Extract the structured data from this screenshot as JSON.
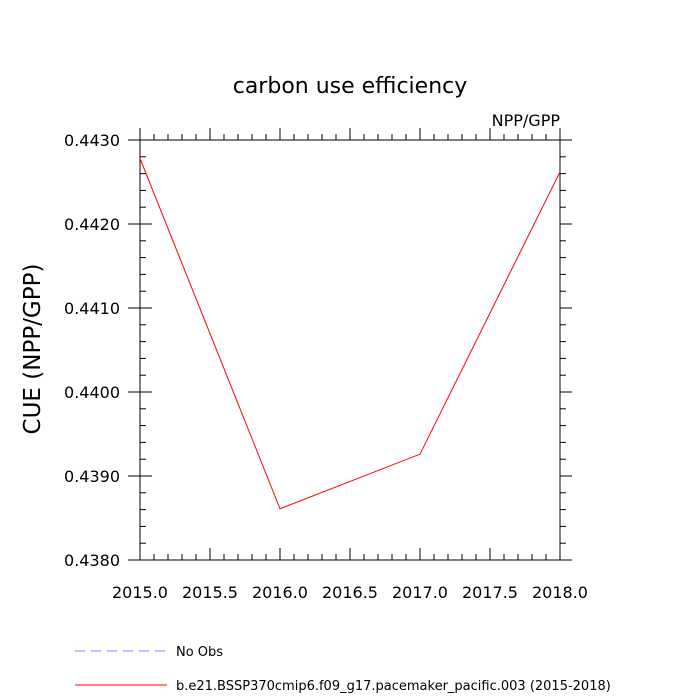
{
  "chart_data": {
    "type": "line",
    "title": "carbon use efficiency",
    "subtitle_right": "NPP/GPP",
    "xlabel": "",
    "ylabel": "CUE  (NPP/GPP)",
    "xlim": [
      2015.0,
      2018.0
    ],
    "ylim": [
      0.438,
      0.443
    ],
    "x_ticks": [
      "2015.0",
      "2015.5",
      "2016.0",
      "2016.5",
      "2017.0",
      "2017.5",
      "2018.0"
    ],
    "y_ticks": [
      "0.4380",
      "0.4390",
      "0.4400",
      "0.4410",
      "0.4420",
      "0.4430"
    ],
    "grid": false,
    "series": [
      {
        "name": "b.e21.BSSP370cmip6.f09_g17.pacemaker_pacific.003 (2015-2018)",
        "color": "#ff0000",
        "dash": "solid",
        "x": [
          2015.0,
          2016.0,
          2017.0,
          2018.0
        ],
        "values": [
          0.44278,
          0.43861,
          0.43926,
          0.44262
        ]
      }
    ],
    "legend": [
      {
        "label": "No Obs",
        "color": "#8080ff",
        "dash": "dashed"
      },
      {
        "label": "b.e21.BSSP370cmip6.f09_g17.pacemaker_pacific.003 (2015-2018)",
        "color": "#ff0000",
        "dash": "solid"
      }
    ],
    "legend_position": "bottom"
  }
}
